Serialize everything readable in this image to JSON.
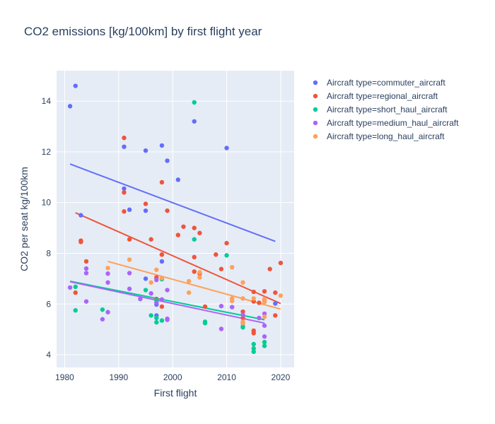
{
  "chart_data": {
    "type": "scatter",
    "title": "CO2 emissions [kg/100km] by first flight year",
    "xlabel": "First flight",
    "ylabel": "CO2 per seat kg/100km",
    "xlim": [
      1978.5,
      2022.5
    ],
    "ylim": [
      3.5,
      15.2
    ],
    "x_ticks": [
      1980,
      1990,
      2000,
      2010,
      2020
    ],
    "y_ticks": [
      4,
      6,
      8,
      10,
      12,
      14
    ],
    "grid": true,
    "legend_position": "top-right",
    "series": [
      {
        "name": "Aircraft type=commuter_aircraft",
        "color": "#636efa",
        "points": [
          [
            1981,
            13.8
          ],
          [
            1982,
            14.6
          ],
          [
            1983,
            9.5
          ],
          [
            1991,
            12.2
          ],
          [
            1991,
            10.55
          ],
          [
            1992,
            9.72
          ],
          [
            1995,
            12.05
          ],
          [
            1995,
            9.68
          ],
          [
            1995,
            7.0
          ],
          [
            1997,
            5.98
          ],
          [
            1997,
            5.55
          ],
          [
            1998,
            12.25
          ],
          [
            1998,
            7.68
          ],
          [
            1999,
            11.65
          ],
          [
            2001,
            10.9
          ],
          [
            2004,
            13.2
          ],
          [
            2010,
            12.15
          ],
          [
            2019,
            6.02
          ]
        ],
        "trend": [
          [
            1981,
            11.52
          ],
          [
            2019,
            8.47
          ]
        ]
      },
      {
        "name": "Aircraft type=regional_aircraft",
        "color": "#EF553B",
        "points": [
          [
            1982,
            6.45
          ],
          [
            1983,
            8.5
          ],
          [
            1983,
            8.45
          ],
          [
            1984,
            7.68
          ],
          [
            1991,
            12.55
          ],
          [
            1991,
            10.4
          ],
          [
            1991,
            9.65
          ],
          [
            1992,
            8.55
          ],
          [
            1995,
            9.95
          ],
          [
            1996,
            8.55
          ],
          [
            1997,
            7.05
          ],
          [
            1997,
            6.2
          ],
          [
            1998,
            10.8
          ],
          [
            1998,
            7.95
          ],
          [
            1998,
            7.95
          ],
          [
            1998,
            5.9
          ],
          [
            1999,
            9.68
          ],
          [
            2001,
            8.72
          ],
          [
            2002,
            9.05
          ],
          [
            2004,
            9.0
          ],
          [
            2004,
            7.85
          ],
          [
            2004,
            7.28
          ],
          [
            2005,
            8.8
          ],
          [
            2005,
            7.2
          ],
          [
            2006,
            5.9
          ],
          [
            2008,
            7.95
          ],
          [
            2009,
            7.38
          ],
          [
            2010,
            8.4
          ],
          [
            2013,
            5.7
          ],
          [
            2013,
            5.45
          ],
          [
            2015,
            6.48
          ],
          [
            2015,
            6.1
          ],
          [
            2015,
            4.95
          ],
          [
            2015,
            4.85
          ],
          [
            2016,
            6.05
          ],
          [
            2017,
            6.5
          ],
          [
            2017,
            6.12
          ],
          [
            2018,
            7.38
          ],
          [
            2019,
            6.45
          ],
          [
            2019,
            5.55
          ],
          [
            2020,
            7.62
          ]
        ],
        "trend": [
          [
            1982,
            9.6
          ],
          [
            2020,
            6.02
          ]
        ]
      },
      {
        "name": "Aircraft type=short_haul_aircraft",
        "color": "#00cc96",
        "points": [
          [
            1982,
            5.75
          ],
          [
            1982,
            6.68
          ],
          [
            1987,
            5.78
          ],
          [
            1995,
            6.55
          ],
          [
            1996,
            5.55
          ],
          [
            1997,
            6.15
          ],
          [
            1997,
            5.45
          ],
          [
            1997,
            5.28
          ],
          [
            1998,
            6.98
          ],
          [
            1998,
            5.35
          ],
          [
            2004,
            13.95
          ],
          [
            2004,
            8.55
          ],
          [
            2006,
            5.25
          ],
          [
            2006,
            5.3
          ],
          [
            2010,
            7.92
          ],
          [
            2013,
            5.08
          ],
          [
            2013,
            5.12
          ],
          [
            2015,
            4.42
          ],
          [
            2015,
            4.25
          ],
          [
            2015,
            4.12
          ],
          [
            2017,
            4.5
          ],
          [
            2017,
            4.35
          ]
        ],
        "trend": [
          [
            1981,
            6.9
          ],
          [
            2017,
            5.38
          ]
        ]
      },
      {
        "name": "Aircraft type=medium_haul_aircraft",
        "color": "#ab63fa",
        "points": [
          [
            1981,
            6.65
          ],
          [
            1984,
            7.4
          ],
          [
            1984,
            7.22
          ],
          [
            1984,
            6.1
          ],
          [
            1987,
            5.4
          ],
          [
            1988,
            6.85
          ],
          [
            1988,
            7.2
          ],
          [
            1988,
            5.68
          ],
          [
            1992,
            7.22
          ],
          [
            1992,
            6.6
          ],
          [
            1994,
            6.2
          ],
          [
            1996,
            6.42
          ],
          [
            1997,
            6.95
          ],
          [
            1997,
            6.05
          ],
          [
            1998,
            6.18
          ],
          [
            1999,
            6.55
          ],
          [
            1999,
            5.42
          ],
          [
            1999,
            5.38
          ],
          [
            2009,
            5.92
          ],
          [
            2009,
            5.02
          ],
          [
            2011,
            5.88
          ],
          [
            2013,
            5.58
          ],
          [
            2013,
            5.25
          ],
          [
            2016,
            5.45
          ],
          [
            2017,
            5.62
          ],
          [
            2017,
            5.15
          ],
          [
            2017,
            4.72
          ]
        ],
        "trend": [
          [
            1981,
            6.88
          ],
          [
            2017,
            5.25
          ]
        ]
      },
      {
        "name": "Aircraft type=long_haul_aircraft",
        "color": "#FFA15A",
        "points": [
          [
            1988,
            7.42
          ],
          [
            1992,
            7.75
          ],
          [
            1996,
            6.85
          ],
          [
            1997,
            7.35
          ],
          [
            1998,
            7.02
          ],
          [
            2003,
            6.9
          ],
          [
            2003,
            6.45
          ],
          [
            2005,
            7.25
          ],
          [
            2005,
            7.05
          ],
          [
            2011,
            7.45
          ],
          [
            2011,
            6.22
          ],
          [
            2011,
            6.12
          ],
          [
            2013,
            6.85
          ],
          [
            2013,
            6.22
          ],
          [
            2013,
            5.3
          ],
          [
            2013,
            5.25
          ],
          [
            2015,
            6.22
          ],
          [
            2017,
            6.2
          ],
          [
            2017,
            6.08
          ],
          [
            2017,
            5.5
          ],
          [
            2020,
            6.33
          ]
        ],
        "trend": [
          [
            1988,
            7.68
          ],
          [
            2020,
            5.8
          ]
        ]
      }
    ]
  }
}
